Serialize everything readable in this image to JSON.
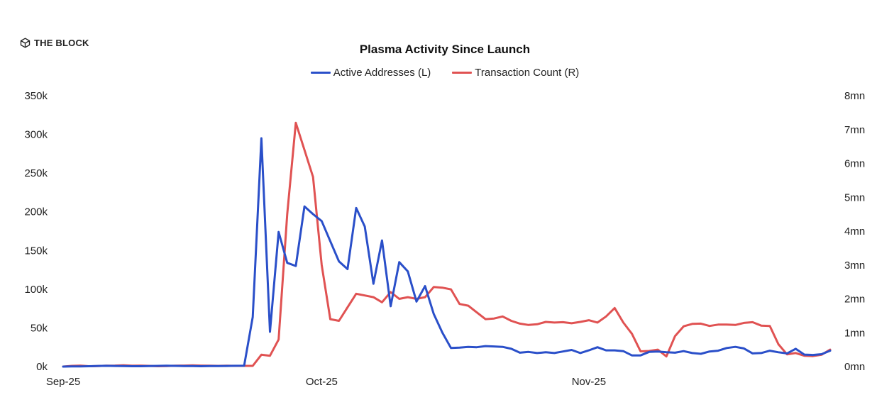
{
  "brand": {
    "logo_text": "THE BLOCK",
    "logo_icon": "cube-logo-icon"
  },
  "chart_data": {
    "type": "line",
    "title": "Plasma Activity Since Launch",
    "x_tick_labels": [
      "Sep-25",
      "Oct-25",
      "Nov-25"
    ],
    "x_tick_indices": [
      0,
      30,
      61
    ],
    "y_left": {
      "ticks": [
        "0k",
        "50k",
        "100k",
        "150k",
        "200k",
        "250k",
        "300k",
        "350k"
      ],
      "ylim": [
        0,
        350000
      ]
    },
    "y_right": {
      "ticks": [
        "0mn",
        "1mn",
        "2mn",
        "3mn",
        "4mn",
        "5mn",
        "6mn",
        "7mn",
        "8mn"
      ],
      "ylim": [
        0,
        8000000
      ]
    },
    "grid": false,
    "legend_position": "top-center",
    "series": [
      {
        "name": "Active Addresses (L)",
        "axis": "left",
        "color": "#2a4fc9",
        "values": [
          0,
          200,
          300,
          500,
          800,
          1000,
          800,
          600,
          500,
          500,
          700,
          900,
          1100,
          900,
          700,
          600,
          500,
          600,
          700,
          800,
          1000,
          1200,
          64000,
          295000,
          45000,
          174000,
          134000,
          130000,
          207000,
          197000,
          188000,
          162000,
          136000,
          126000,
          205000,
          181000,
          107000,
          163000,
          78000,
          135000,
          123000,
          84000,
          104000,
          68000,
          44000,
          24000,
          24500,
          25500,
          25000,
          26500,
          26000,
          25500,
          23000,
          18000,
          19000,
          17500,
          18500,
          17500,
          19500,
          21500,
          17500,
          21000,
          25000,
          21000,
          21000,
          20000,
          14500,
          14500,
          19000,
          19500,
          18500,
          18000,
          20000,
          17500,
          16500,
          19500,
          20500,
          24000,
          25500,
          23500,
          17000,
          17500,
          20500,
          18500,
          17000,
          23000,
          15500,
          15000,
          16000,
          20500
        ]
      },
      {
        "name": "Transaction Count (R)",
        "axis": "right",
        "color": "#e05252",
        "values": [
          0,
          20000,
          30000,
          10000,
          15000,
          25000,
          30000,
          40000,
          25000,
          30000,
          20000,
          10000,
          15000,
          25000,
          30000,
          35000,
          30000,
          25000,
          20000,
          25000,
          20000,
          20000,
          20000,
          350000,
          320000,
          800000,
          4500000,
          7200000,
          6400000,
          5600000,
          3000000,
          1400000,
          1350000,
          1750000,
          2150000,
          2100000,
          2050000,
          1900000,
          2200000,
          2000000,
          2050000,
          2000000,
          2050000,
          2350000,
          2330000,
          2280000,
          1850000,
          1800000,
          1600000,
          1400000,
          1420000,
          1480000,
          1350000,
          1270000,
          1230000,
          1250000,
          1320000,
          1300000,
          1310000,
          1280000,
          1320000,
          1370000,
          1300000,
          1480000,
          1730000,
          1300000,
          970000,
          450000,
          460000,
          500000,
          300000,
          900000,
          1190000,
          1260000,
          1270000,
          1200000,
          1240000,
          1240000,
          1230000,
          1290000,
          1310000,
          1210000,
          1200000,
          660000,
          360000,
          400000,
          320000,
          310000,
          350000,
          500000
        ]
      }
    ]
  }
}
